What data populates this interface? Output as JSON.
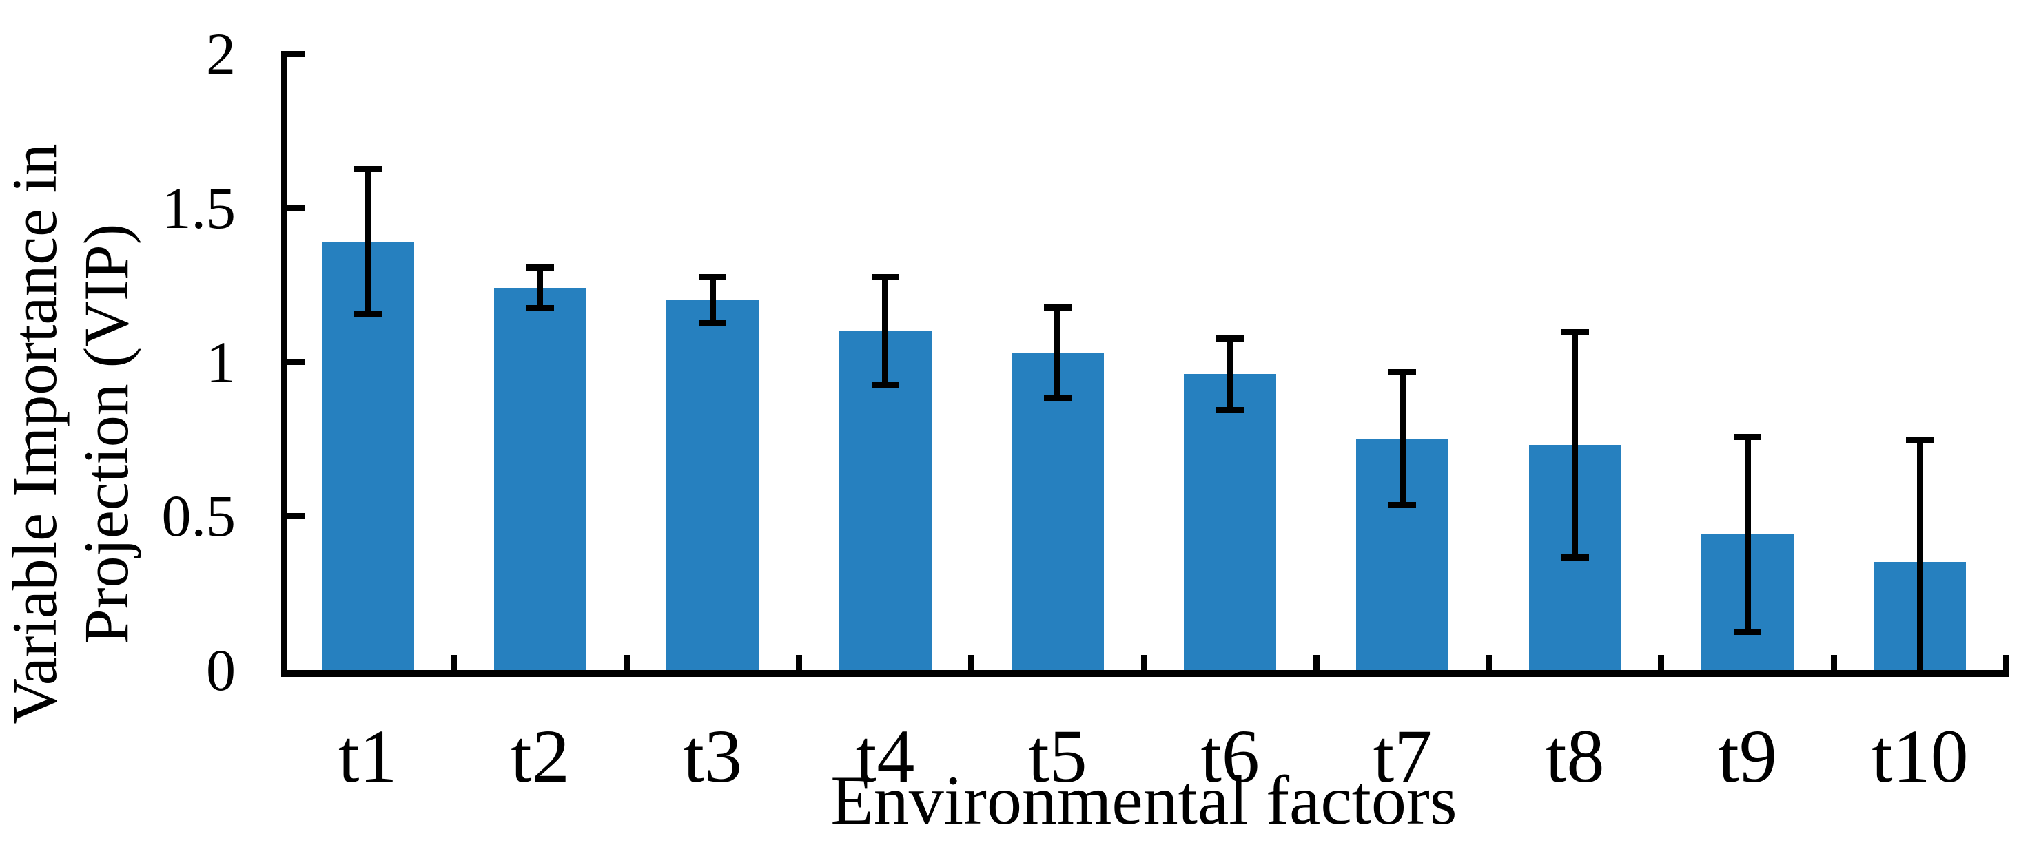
{
  "chart_data": {
    "type": "bar",
    "title": "",
    "categories": [
      "t1",
      "t2",
      "t3",
      "t4",
      "t5",
      "t6",
      "t7",
      "t8",
      "t9",
      "t10"
    ],
    "values": [
      1.39,
      1.24,
      1.2,
      1.1,
      1.03,
      0.96,
      0.75,
      0.73,
      0.44,
      0.35
    ],
    "errors": [
      0.24,
      0.07,
      0.08,
      0.18,
      0.15,
      0.12,
      0.22,
      0.37,
      0.32,
      0.4
    ],
    "series_note": "single series, symmetric error bars; t10 lower whisker clipped at axis (0)",
    "xlabel": "Environmental factors",
    "ylabel_line1": "Variable Importance in",
    "ylabel_line2": "Projection (VIP)",
    "ytick_labels": [
      "0",
      "0.5",
      "1",
      "1.5",
      "2"
    ],
    "yticks": [
      0,
      0.5,
      1,
      1.5,
      2
    ],
    "ylim": [
      0,
      2
    ],
    "grid": false,
    "legend": "none",
    "bar_color": "#2680BF",
    "axis_color": "#000000",
    "background_color": "#FFFFFF"
  }
}
